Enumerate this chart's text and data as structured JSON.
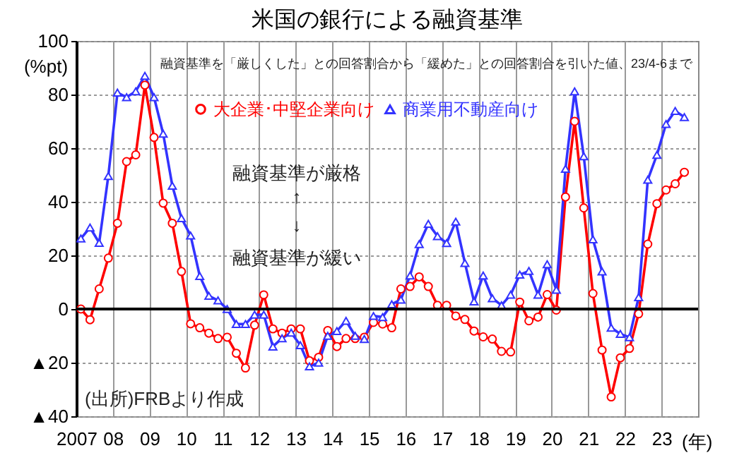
{
  "chart_data": {
    "type": "line",
    "title": "米国の銀行による融資基準",
    "ylabel": "(%pt)",
    "annotations": [
      "融資基準を「厳しくした」との回答割合から「緩めた」との回答割合を引いた値、23/4-6まで",
      "融資基準が厳格",
      "↑",
      "↓",
      "融資基準が緩い",
      "(出所)FRBより作成"
    ],
    "x": [
      2007.125,
      2007.375,
      2007.625,
      2007.875,
      2008.125,
      2008.375,
      2008.625,
      2008.875,
      2009.125,
      2009.375,
      2009.625,
      2009.875,
      2010.125,
      2010.375,
      2010.625,
      2010.875,
      2011.125,
      2011.375,
      2011.625,
      2011.875,
      2012.125,
      2012.375,
      2012.625,
      2012.875,
      2013.125,
      2013.375,
      2013.625,
      2013.875,
      2014.125,
      2014.375,
      2014.625,
      2014.875,
      2015.125,
      2015.375,
      2015.625,
      2015.875,
      2016.125,
      2016.375,
      2016.625,
      2016.875,
      2017.125,
      2017.375,
      2017.625,
      2017.875,
      2018.125,
      2018.375,
      2018.625,
      2018.875,
      2019.125,
      2019.375,
      2019.625,
      2019.875,
      2020.125,
      2020.375,
      2020.625,
      2020.875,
      2021.125,
      2021.375,
      2021.625,
      2021.875,
      2022.125,
      2022.375,
      2022.625,
      2022.875,
      2023.125,
      2023.375,
      2023.625
    ],
    "series": [
      {
        "name": "大企業･中堅企業向け",
        "color": "#ff0000",
        "marker": "circle",
        "values": [
          0,
          -4,
          7.5,
          19,
          32,
          55,
          57.5,
          83.5,
          64,
          39.5,
          32,
          14,
          -5.5,
          -7,
          -9,
          -11,
          -10.5,
          -16.5,
          -22,
          -6,
          5.3,
          -7.4,
          -9,
          -7.4,
          -7.4,
          -19.3,
          -18,
          -8,
          -14,
          -11,
          -11,
          -10.5,
          -5,
          -5.6,
          -7,
          7.5,
          8.4,
          12,
          8.4,
          1.4,
          1.4,
          -2.6,
          -3.9,
          -8.2,
          -10.4,
          -11.2,
          -15.8,
          -16,
          2.6,
          -4.4,
          -3,
          5.4,
          -0.4,
          41.8,
          70,
          37.7,
          5.8,
          -15.3,
          -32.8,
          -18.2,
          -14.7,
          -1.8,
          24.2,
          39.3,
          44.4,
          46.7,
          51
        ]
      },
      {
        "name": "商業用不動産向け",
        "color": "#3333ff",
        "marker": "triangle",
        "values": [
          26.3,
          30.4,
          24.7,
          49.6,
          80.7,
          79,
          81.2,
          87,
          79,
          65.4,
          46,
          33.9,
          27.4,
          12.3,
          4.9,
          3.2,
          0,
          -5.6,
          -5.6,
          -2.1,
          -2.1,
          -14,
          -10.9,
          -8.8,
          -13.5,
          -21.4,
          -20,
          -10,
          -8.2,
          -4.4,
          -10,
          -11.2,
          -2.6,
          -3,
          1.8,
          3.5,
          12.5,
          24.2,
          31.8,
          27.2,
          24.6,
          32.6,
          17.2,
          2.8,
          12.5,
          4,
          1.4,
          5.3,
          12.8,
          14.2,
          5.3,
          16.7,
          7.2,
          52.3,
          81.2,
          57,
          26,
          14,
          -7,
          -9.3,
          -10.5,
          4.4,
          48.2,
          57.5,
          69,
          73.9,
          71.6
        ]
      }
    ],
    "xlim": [
      2007,
      2024
    ],
    "xticks": [
      {
        "value": 2007,
        "label": "2007"
      },
      {
        "value": 2008,
        "label": "08"
      },
      {
        "value": 2009,
        "label": "09"
      },
      {
        "value": 2010,
        "label": "10"
      },
      {
        "value": 2011,
        "label": "11"
      },
      {
        "value": 2012,
        "label": "12"
      },
      {
        "value": 2013,
        "label": "13"
      },
      {
        "value": 2014,
        "label": "14"
      },
      {
        "value": 2015,
        "label": "15"
      },
      {
        "value": 2016,
        "label": "16"
      },
      {
        "value": 2017,
        "label": "17"
      },
      {
        "value": 2018,
        "label": "18"
      },
      {
        "value": 2019,
        "label": "19"
      },
      {
        "value": 2020,
        "label": "20"
      },
      {
        "value": 2021,
        "label": "21"
      },
      {
        "value": 2022,
        "label": "22"
      },
      {
        "value": 2023,
        "label": "23"
      }
    ],
    "xlabel": "(年)",
    "ylim": [
      -40,
      100
    ],
    "yticks": [
      {
        "value": -40,
        "label": "▲40"
      },
      {
        "value": -20,
        "label": "▲20"
      },
      0,
      20,
      40,
      60,
      80,
      100
    ],
    "ref_lines": [
      {
        "axis": "y",
        "value": 0,
        "color": "#000000"
      }
    ],
    "grid": true,
    "legend": "top"
  }
}
